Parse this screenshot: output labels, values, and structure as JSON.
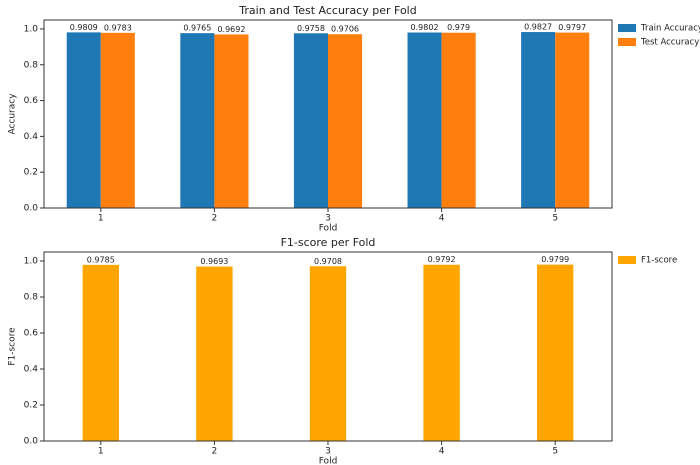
{
  "chart_data": [
    {
      "type": "bar",
      "title": "Train and Test Accuracy per Fold",
      "x_label": "Fold",
      "y_label": "Accuracy",
      "categories": [
        "1",
        "2",
        "3",
        "4",
        "5"
      ],
      "series": [
        {
          "name": "Train Accuracy",
          "color": "#1f77b4",
          "values": [
            0.9809,
            0.9765,
            0.9758,
            0.9802,
            0.9827
          ]
        },
        {
          "name": "Test Accuracy",
          "color": "#ff7f0e",
          "values": [
            0.9783,
            0.9692,
            0.9706,
            0.979,
            0.9797
          ]
        }
      ],
      "ylim": [
        0,
        1.05
      ],
      "yticks": [
        {
          "value": 0,
          "label": "0.0"
        },
        0.2,
        0.4,
        0.6,
        0.8,
        {
          "value": 1,
          "label": "1.0"
        }
      ],
      "legend": "outside-right"
    },
    {
      "type": "bar",
      "title": "F1-score per Fold",
      "x_label": "Fold",
      "y_label": "F1-score",
      "categories": [
        "1",
        "2",
        "3",
        "4",
        "5"
      ],
      "series": [
        {
          "name": "F1-score",
          "color": "#ffa500",
          "values": [
            0.9785,
            0.9693,
            0.9708,
            0.9792,
            0.9799
          ]
        }
      ],
      "ylim": [
        0,
        1.05
      ],
      "yticks": [
        {
          "value": 0,
          "label": "0.0"
        },
        0.2,
        0.4,
        0.6,
        0.8,
        {
          "value": 1,
          "label": "1.0"
        }
      ],
      "legend": "outside-right"
    }
  ]
}
